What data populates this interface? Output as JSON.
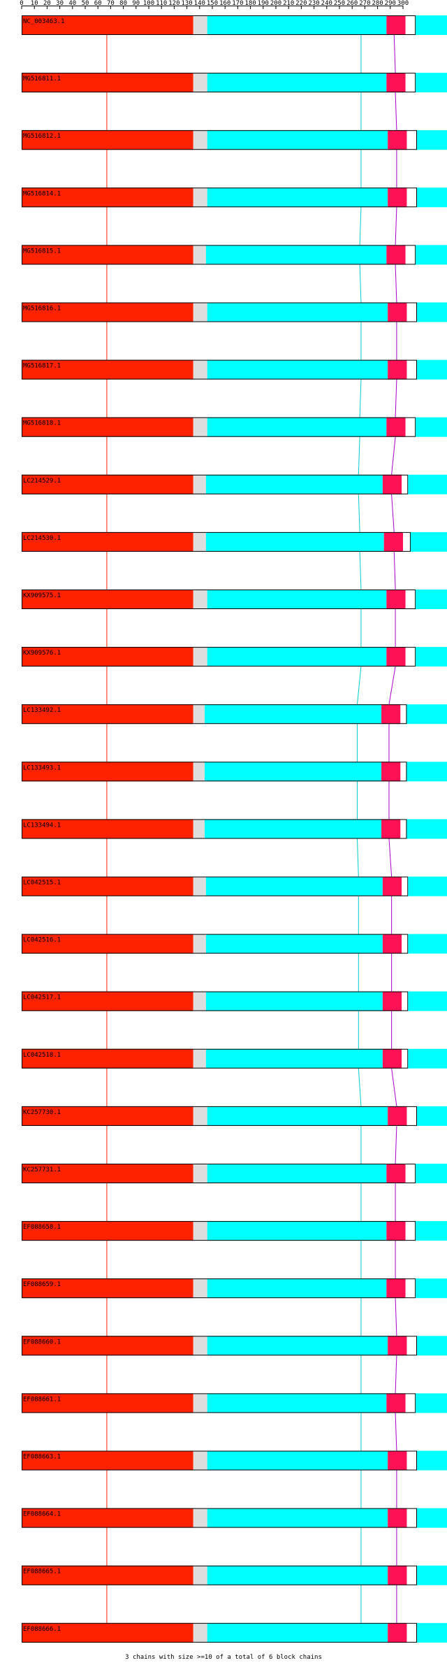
{
  "chart_data": {
    "type": "diagram",
    "axis": {
      "min": 0,
      "max": 300,
      "ticks": [
        0,
        10,
        20,
        30,
        40,
        50,
        60,
        70,
        80,
        90,
        100,
        110,
        120,
        130,
        140,
        150,
        160,
        170,
        180,
        190,
        200,
        210,
        220,
        230,
        240,
        250,
        260,
        270,
        280,
        290,
        300
      ]
    },
    "colors": {
      "red": "#ff2200",
      "grey": "#dddddd",
      "cyan": "#00ffff",
      "crimson": "#ff1155",
      "purple": "#aa00cc",
      "outline": "#000000"
    },
    "rows": [
      {
        "label": "NC_003463.1",
        "grey": [
          135,
          146
        ],
        "cyan": [
          146,
          287
        ],
        "crimson": [
          287,
          302
        ],
        "tail": [
          302,
          310
        ],
        "cyanLine": 267,
        "crimsonLine": 293
      },
      {
        "label": "MG516811.1",
        "grey": [
          135,
          146
        ],
        "cyan": [
          146,
          287
        ],
        "crimson": [
          287,
          302
        ],
        "tail": [
          302,
          310
        ],
        "cyanLine": 267,
        "crimsonLine": 294
      },
      {
        "label": "MG516812.1",
        "grey": [
          135,
          146
        ],
        "cyan": [
          146,
          288
        ],
        "crimson": [
          288,
          303
        ],
        "tail": [
          303,
          311
        ],
        "cyanLine": 267,
        "crimsonLine": 295
      },
      {
        "label": "MG516814.1",
        "grey": [
          135,
          146
        ],
        "cyan": [
          146,
          288
        ],
        "crimson": [
          288,
          303
        ],
        "tail": [
          303,
          311
        ],
        "cyanLine": 267,
        "crimsonLine": 295
      },
      {
        "label": "MG516815.1",
        "grey": [
          135,
          145
        ],
        "cyan": [
          145,
          287
        ],
        "crimson": [
          287,
          302
        ],
        "tail": [
          302,
          310
        ],
        "cyanLine": 266,
        "crimsonLine": 294
      },
      {
        "label": "MG516816.1",
        "grey": [
          135,
          146
        ],
        "cyan": [
          146,
          288
        ],
        "crimson": [
          288,
          303
        ],
        "tail": [
          303,
          311
        ],
        "cyanLine": 267,
        "crimsonLine": 295
      },
      {
        "label": "MG516817.1",
        "grey": [
          135,
          146
        ],
        "cyan": [
          146,
          288
        ],
        "crimson": [
          288,
          303
        ],
        "tail": [
          303,
          311
        ],
        "cyanLine": 267,
        "crimsonLine": 295
      },
      {
        "label": "MG516818.1",
        "grey": [
          135,
          146
        ],
        "cyan": [
          146,
          287
        ],
        "crimson": [
          287,
          302
        ],
        "tail": [
          302,
          310
        ],
        "cyanLine": 266,
        "crimsonLine": 294
      },
      {
        "label": "LC214529.1",
        "grey": [
          135,
          145
        ],
        "cyan": [
          145,
          284
        ],
        "crimson": [
          284,
          299
        ],
        "tail": [
          299,
          304
        ],
        "cyanLine": 265,
        "crimsonLine": 291
      },
      {
        "label": "LC214530.1",
        "grey": [
          135,
          145
        ],
        "cyan": [
          145,
          285
        ],
        "crimson": [
          285,
          300
        ],
        "tail": [
          300,
          306
        ],
        "cyanLine": 266,
        "crimsonLine": 293
      },
      {
        "label": "KX909575.1",
        "grey": [
          135,
          146
        ],
        "cyan": [
          146,
          287
        ],
        "crimson": [
          287,
          302
        ],
        "tail": [
          302,
          310
        ],
        "cyanLine": 267,
        "crimsonLine": 294
      },
      {
        "label": "KX909576.1",
        "grey": [
          135,
          146
        ],
        "cyan": [
          146,
          287
        ],
        "crimson": [
          287,
          302
        ],
        "tail": [
          302,
          310
        ],
        "cyanLine": 267,
        "crimsonLine": 294
      },
      {
        "label": "LC133492.1",
        "grey": [
          135,
          144
        ],
        "cyan": [
          144,
          283
        ],
        "crimson": [
          283,
          298
        ],
        "tail": [
          298,
          303
        ],
        "cyanLine": 264,
        "crimsonLine": 289
      },
      {
        "label": "LC133493.1",
        "grey": [
          135,
          144
        ],
        "cyan": [
          144,
          283
        ],
        "crimson": [
          283,
          298
        ],
        "tail": [
          298,
          303
        ],
        "cyanLine": 264,
        "crimsonLine": 289
      },
      {
        "label": "LC133494.1",
        "grey": [
          135,
          144
        ],
        "cyan": [
          144,
          283
        ],
        "crimson": [
          283,
          298
        ],
        "tail": [
          298,
          303
        ],
        "cyanLine": 264,
        "crimsonLine": 289
      },
      {
        "label": "LC042515.1",
        "grey": [
          135,
          145
        ],
        "cyan": [
          145,
          284
        ],
        "crimson": [
          284,
          299
        ],
        "tail": [
          299,
          304
        ],
        "cyanLine": 265,
        "crimsonLine": 291
      },
      {
        "label": "LC042516.1",
        "grey": [
          135,
          145
        ],
        "cyan": [
          145,
          284
        ],
        "crimson": [
          284,
          299
        ],
        "tail": [
          299,
          304
        ],
        "cyanLine": 265,
        "crimsonLine": 291
      },
      {
        "label": "LC042517.1",
        "grey": [
          135,
          145
        ],
        "cyan": [
          145,
          284
        ],
        "crimson": [
          284,
          299
        ],
        "tail": [
          299,
          304
        ],
        "cyanLine": 265,
        "crimsonLine": 291
      },
      {
        "label": "LC042518.1",
        "grey": [
          135,
          145
        ],
        "cyan": [
          145,
          284
        ],
        "crimson": [
          284,
          299
        ],
        "tail": [
          299,
          304
        ],
        "cyanLine": 265,
        "crimsonLine": 291
      },
      {
        "label": "KC257730.1",
        "grey": [
          135,
          146
        ],
        "cyan": [
          146,
          288
        ],
        "crimson": [
          288,
          303
        ],
        "tail": [
          303,
          311
        ],
        "cyanLine": 267,
        "crimsonLine": 295
      },
      {
        "label": "KC257731.1",
        "grey": [
          135,
          146
        ],
        "cyan": [
          146,
          287
        ],
        "crimson": [
          287,
          302
        ],
        "tail": [
          302,
          310
        ],
        "cyanLine": 267,
        "crimsonLine": 294
      },
      {
        "label": "EF088658.1",
        "grey": [
          135,
          146
        ],
        "cyan": [
          146,
          287
        ],
        "crimson": [
          287,
          302
        ],
        "tail": [
          302,
          310
        ],
        "cyanLine": 267,
        "crimsonLine": 294
      },
      {
        "label": "EF088659.1",
        "grey": [
          135,
          146
        ],
        "cyan": [
          146,
          287
        ],
        "crimson": [
          287,
          302
        ],
        "tail": [
          302,
          310
        ],
        "cyanLine": 267,
        "crimsonLine": 294
      },
      {
        "label": "EF088660.1",
        "grey": [
          135,
          146
        ],
        "cyan": [
          146,
          288
        ],
        "crimson": [
          288,
          303
        ],
        "tail": [
          303,
          311
        ],
        "cyanLine": 267,
        "crimsonLine": 295
      },
      {
        "label": "EF088661.1",
        "grey": [
          135,
          146
        ],
        "cyan": [
          146,
          287
        ],
        "crimson": [
          287,
          302
        ],
        "tail": [
          302,
          310
        ],
        "cyanLine": 267,
        "crimsonLine": 294
      },
      {
        "label": "EF088663.1",
        "grey": [
          135,
          146
        ],
        "cyan": [
          146,
          288
        ],
        "crimson": [
          288,
          303
        ],
        "tail": [
          303,
          311
        ],
        "cyanLine": 267,
        "crimsonLine": 295
      },
      {
        "label": "EF088664.1",
        "grey": [
          135,
          146
        ],
        "cyan": [
          146,
          288
        ],
        "crimson": [
          288,
          303
        ],
        "tail": [
          303,
          311
        ],
        "cyanLine": 267,
        "crimsonLine": 295
      },
      {
        "label": "EF088665.1",
        "grey": [
          135,
          146
        ],
        "cyan": [
          146,
          288
        ],
        "crimson": [
          288,
          303
        ],
        "tail": [
          303,
          311
        ],
        "cyanLine": 267,
        "crimsonLine": 295
      },
      {
        "label": "EF088666.1",
        "grey": [
          135,
          146
        ],
        "cyan": [
          146,
          288
        ],
        "crimson": [
          288,
          303
        ],
        "tail": [
          303,
          311
        ],
        "cyanLine": 267,
        "crimsonLine": 295
      }
    ],
    "redEnd": 135,
    "redLine": 67,
    "footer": "3 chains with size >=10 of a total of 6 block chains"
  }
}
